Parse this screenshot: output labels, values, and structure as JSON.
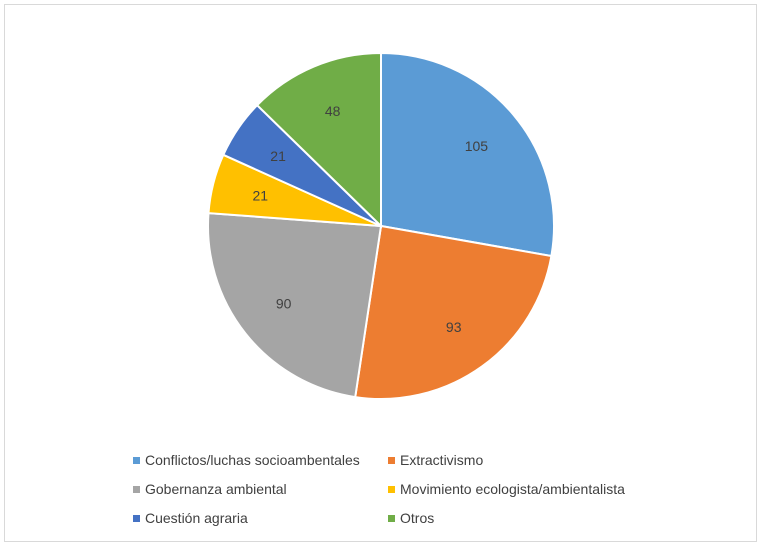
{
  "chart_data": {
    "type": "pie",
    "categories": [
      "Conflictos/luchas socioambentales",
      "Extractivismo",
      "Gobernanza ambiental",
      "Movimiento ecologista/ambientalista",
      "Cuestión agraria",
      "Otros"
    ],
    "values": [
      105,
      93,
      90,
      21,
      21,
      48
    ],
    "colors": [
      "#5b9bd5",
      "#ed7d31",
      "#a5a5a5",
      "#ffc000",
      "#4472c4",
      "#70ad47"
    ],
    "title": "",
    "legend_position": "bottom",
    "data_labels": [
      "105",
      "93",
      "90",
      "21",
      "21",
      "48"
    ]
  }
}
